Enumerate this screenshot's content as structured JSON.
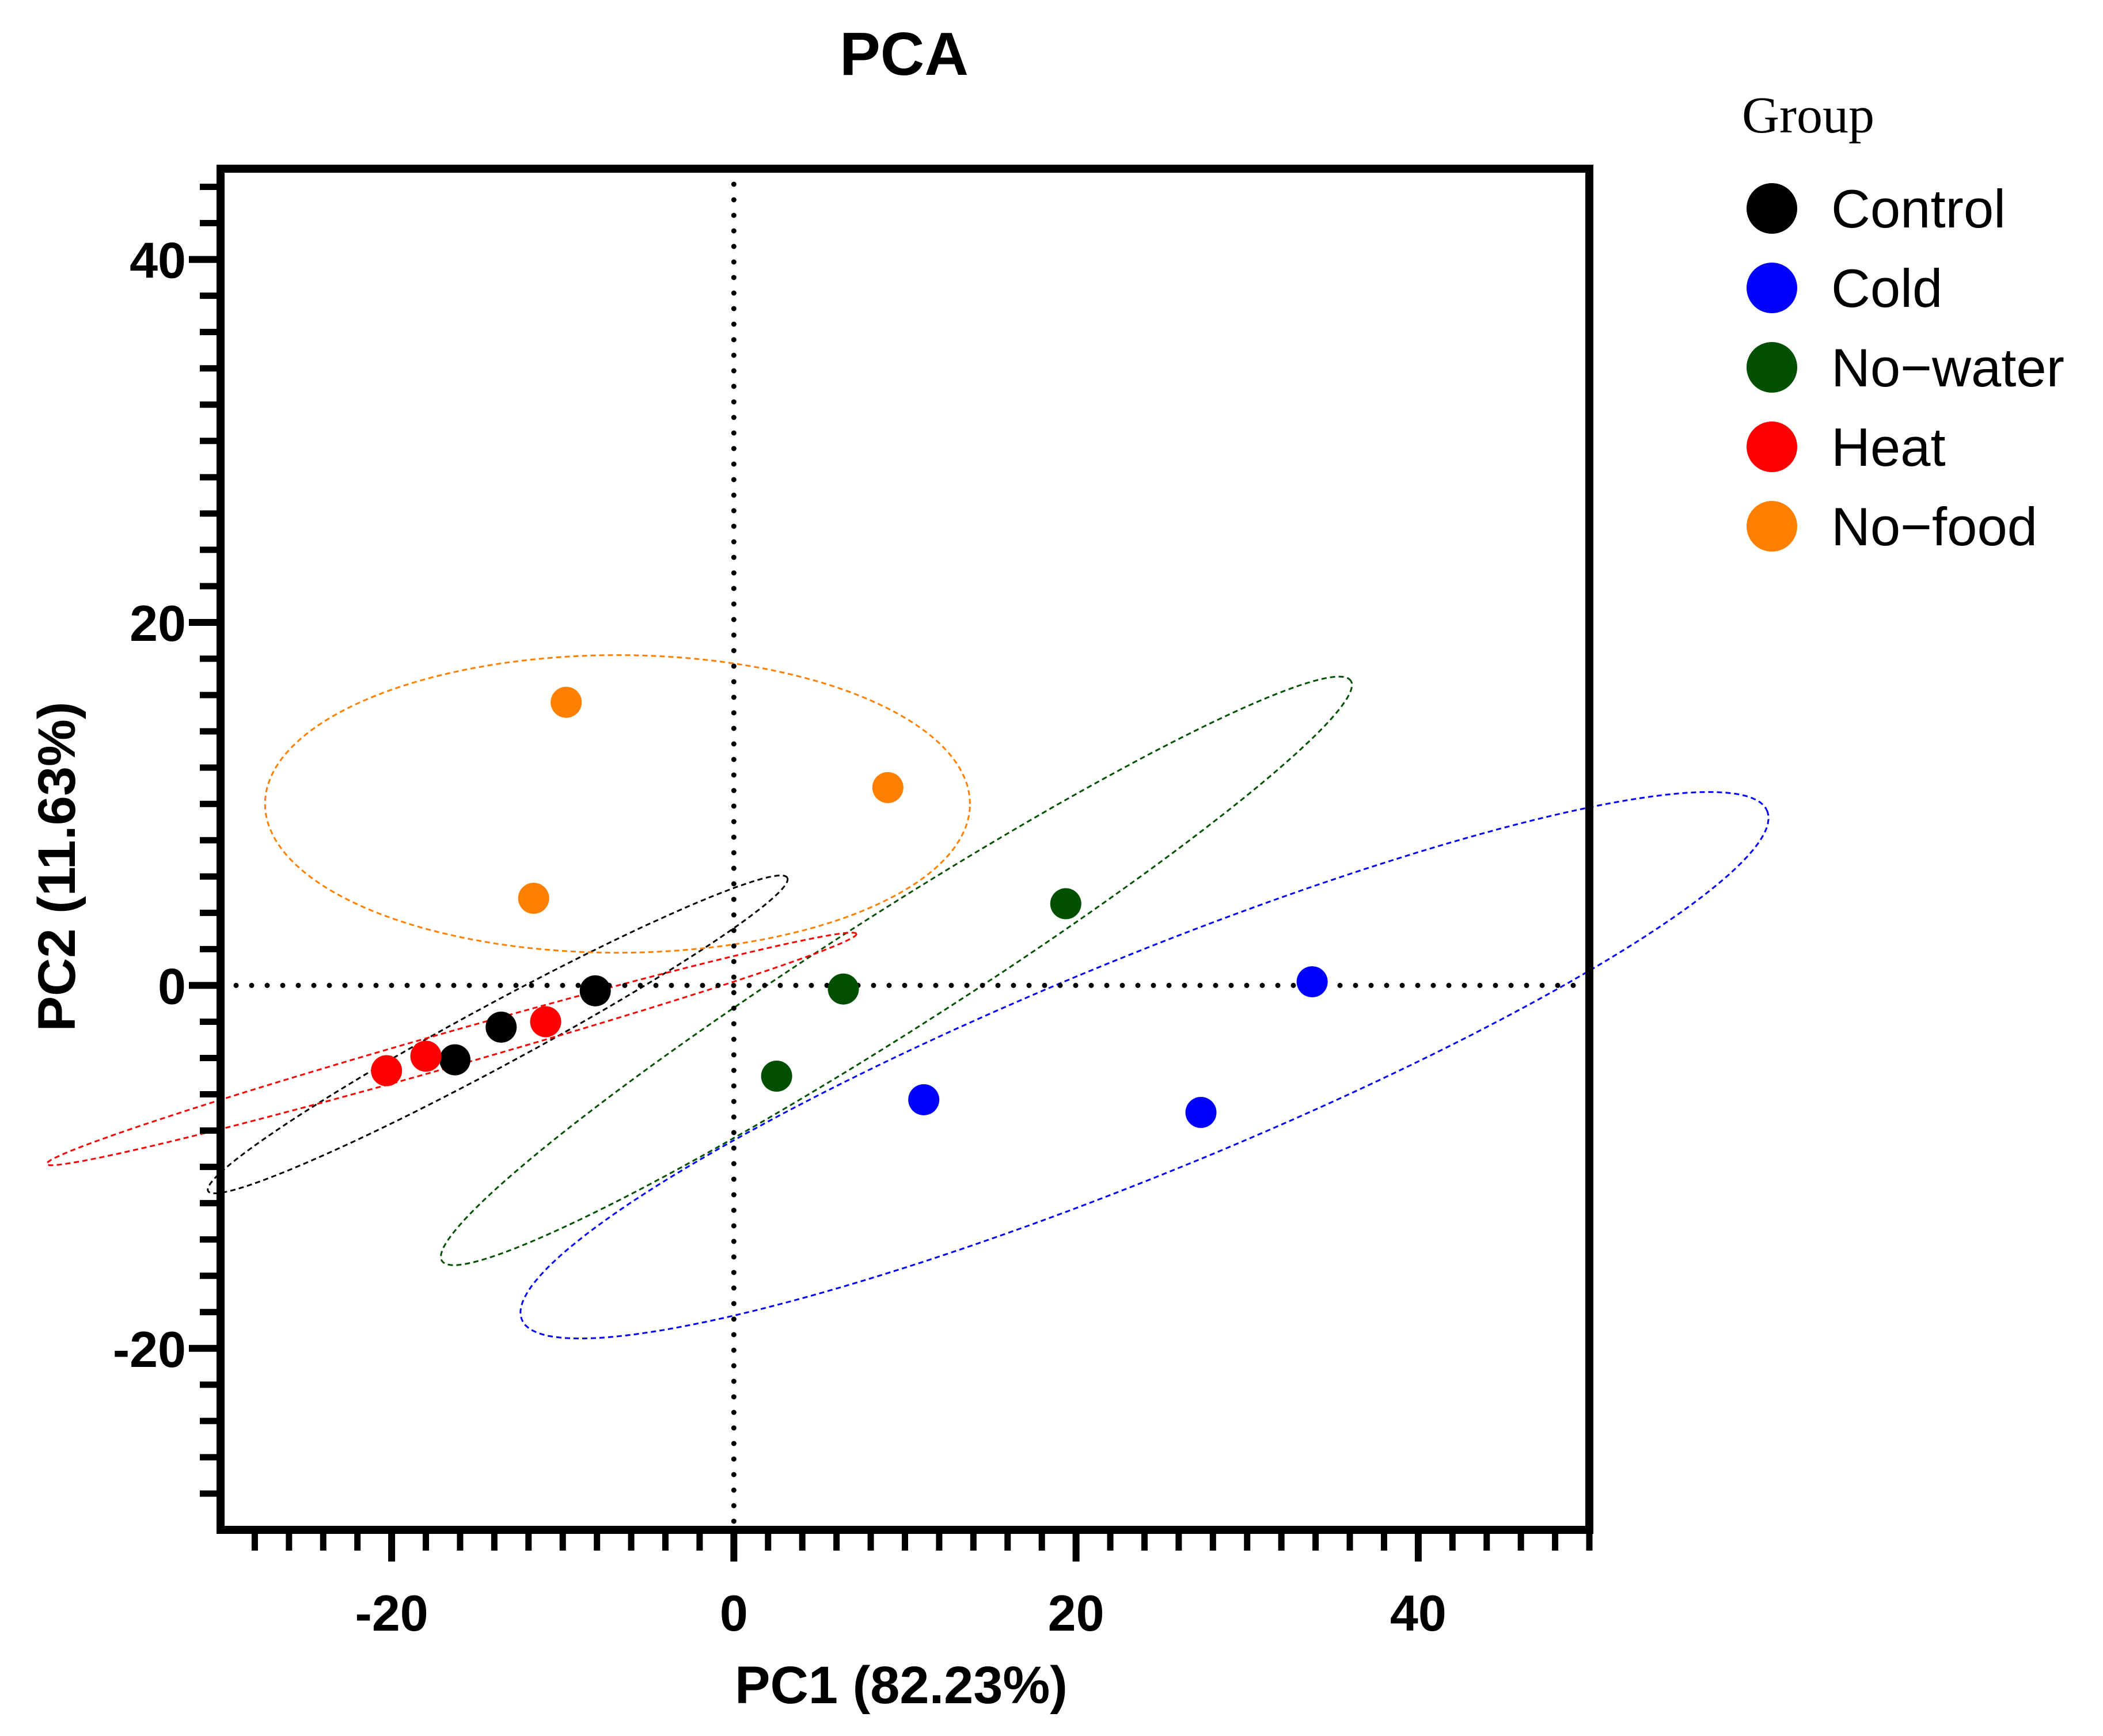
{
  "chart_data": {
    "type": "scatter",
    "title": "PCA",
    "xlabel": "PC1 (82.23%)",
    "ylabel": "PC2 (11.63%)",
    "xlim": [
      -30,
      50
    ],
    "ylim": [
      -30,
      45
    ],
    "xticks": [
      -20,
      0,
      20,
      40
    ],
    "yticks": [
      40,
      20,
      0,
      -20
    ],
    "reference_lines": {
      "x": 0,
      "y": 0,
      "style": "dotted"
    },
    "legend": {
      "title": "Group",
      "placement": "right"
    },
    "series": [
      {
        "name": "Control",
        "color": "#000000",
        "points": [
          [
            -16.3,
            -4.1
          ],
          [
            -13.6,
            -2.3
          ],
          [
            -8.1,
            -0.3
          ]
        ],
        "ellipse": {
          "center": [
            -13.8,
            -2.7
          ],
          "semi_major": 19.0,
          "semi_minor": 1.7,
          "angle_deg": 27
        }
      },
      {
        "name": "Cold",
        "color": "#0000ff",
        "points": [
          [
            11.1,
            -6.3
          ],
          [
            27.3,
            -7.0
          ],
          [
            33.8,
            0.2
          ]
        ],
        "ellipse": {
          "center": [
            24.0,
            -4.4
          ],
          "semi_major": 39.0,
          "semi_minor": 6.0,
          "angle_deg": 21
        }
      },
      {
        "name": "No−water",
        "color": "#005000",
        "points": [
          [
            2.5,
            -5.0
          ],
          [
            6.4,
            -0.2
          ],
          [
            19.4,
            4.5
          ]
        ],
        "ellipse": {
          "center": [
            9.5,
            0.8
          ],
          "semi_major": 31.0,
          "semi_minor": 3.3,
          "angle_deg": 31
        }
      },
      {
        "name": "Heat",
        "color": "#ff0000",
        "points": [
          [
            -20.3,
            -4.7
          ],
          [
            -18.0,
            -3.9
          ],
          [
            -11.0,
            -2.0
          ]
        ],
        "ellipse": {
          "center": [
            -16.5,
            -3.5
          ],
          "semi_major": 24.5,
          "semi_minor": 0.95,
          "angle_deg": 15
        }
      },
      {
        "name": "No−food",
        "color": "#ff8000",
        "points": [
          [
            -9.8,
            15.6
          ],
          [
            9.0,
            10.9
          ],
          [
            -11.7,
            4.8
          ]
        ],
        "ellipse": {
          "center": [
            -6.8,
            10.0
          ],
          "semi_major": 20.6,
          "semi_minor": 8.2,
          "angle_deg": 0
        }
      }
    ]
  }
}
